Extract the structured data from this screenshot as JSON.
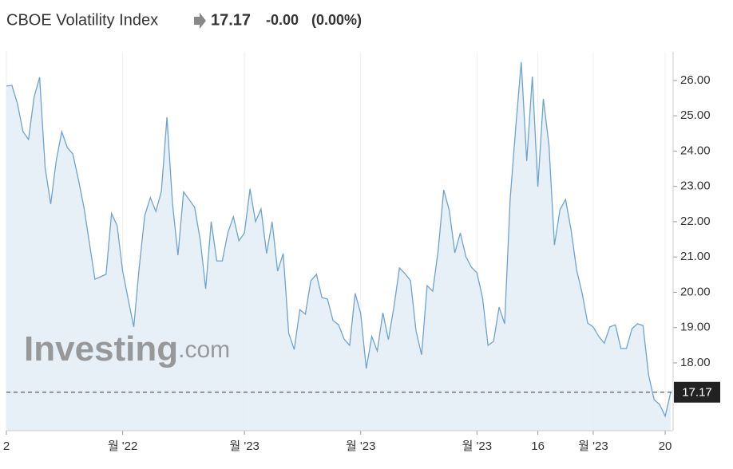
{
  "header": {
    "title": "CBOE Volatility Index",
    "price": "17.17",
    "change": "-0.00",
    "change_pct": "(0.00%)"
  },
  "watermark": [
    "Investing",
    ".com"
  ],
  "chart_data": {
    "type": "area",
    "categories": [
      "2",
      null,
      null,
      null,
      null,
      null,
      null,
      null,
      null,
      null,
      null,
      null,
      null,
      null,
      null,
      null,
      null,
      null,
      null,
      null,
      null,
      "월 '22",
      null,
      null,
      null,
      null,
      null,
      null,
      null,
      null,
      null,
      null,
      null,
      null,
      null,
      null,
      null,
      null,
      null,
      null,
      null,
      null,
      null,
      "월 '23",
      null,
      null,
      null,
      null,
      null,
      null,
      null,
      null,
      null,
      null,
      null,
      null,
      null,
      null,
      null,
      null,
      null,
      null,
      null,
      null,
      "월 '23",
      null,
      null,
      null,
      null,
      null,
      null,
      null,
      null,
      null,
      null,
      null,
      null,
      null,
      null,
      null,
      null,
      null,
      null,
      null,
      null,
      "월 '23",
      null,
      null,
      null,
      null,
      null,
      null,
      null,
      null,
      null,
      null,
      "16",
      null,
      null,
      null,
      null,
      null,
      null,
      null,
      null,
      null,
      "월 '23",
      null,
      null,
      null,
      null,
      null,
      null,
      null,
      null,
      null,
      null,
      null,
      null,
      "20",
      null
    ],
    "series": [
      {
        "color": "#6fa3cf",
        "values": [
          25.84,
          25.86,
          25.34,
          24.55,
          24.33,
          25.53,
          26.09,
          23.54,
          22.5,
          23.72,
          24.55,
          24.1,
          23.92,
          23.2,
          22.41,
          21.39,
          20.37,
          20.44,
          20.51,
          22.23,
          21.89,
          20.6,
          19.81,
          19.02,
          20.71,
          22.18,
          22.68,
          22.29,
          22.86,
          24.96,
          22.52,
          21.05,
          22.84,
          22.63,
          22.41,
          21.5,
          20.1,
          22.0,
          20.89,
          20.89,
          21.68,
          22.14,
          21.46,
          21.68,
          22.93,
          22.0,
          22.36,
          21.1,
          22.0,
          20.6,
          21.1,
          18.84,
          18.38,
          19.51,
          19.38,
          20.33,
          20.51,
          19.85,
          19.81,
          19.2,
          19.08,
          18.68,
          18.5,
          19.97,
          19.4,
          17.84,
          18.75,
          18.34,
          19.42,
          18.66,
          19.58,
          20.69,
          20.53,
          20.33,
          18.9,
          18.23,
          20.19,
          20.03,
          21.19,
          22.9,
          22.32,
          21.12,
          21.68,
          21.01,
          20.71,
          20.55,
          19.85,
          18.5,
          18.61,
          19.58,
          19.11,
          22.63,
          24.67,
          26.52,
          23.72,
          26.11,
          22.99,
          25.48,
          24.17,
          21.34,
          22.34,
          22.63,
          21.77,
          20.64,
          19.97,
          19.13,
          19.02,
          18.75,
          18.56,
          19.02,
          19.08,
          18.41,
          18.41,
          18.97,
          19.11,
          19.06,
          17.66,
          16.96,
          16.82,
          16.49,
          17.17
        ]
      }
    ],
    "ylim": [
      16.08,
      26.81
    ],
    "yticks": [
      {
        "value": 18,
        "label": "18.00"
      },
      {
        "value": 19,
        "label": "19.00"
      },
      {
        "value": 20,
        "label": "20.00"
      },
      {
        "value": 21,
        "label": "21.00"
      },
      {
        "value": 22,
        "label": "22.00"
      },
      {
        "value": 23,
        "label": "23.00"
      },
      {
        "value": 24,
        "label": "24.00"
      },
      {
        "value": 25,
        "label": "25.00"
      },
      {
        "value": 26,
        "label": "26.00"
      }
    ],
    "last_price": 17.17,
    "grid": true
  }
}
